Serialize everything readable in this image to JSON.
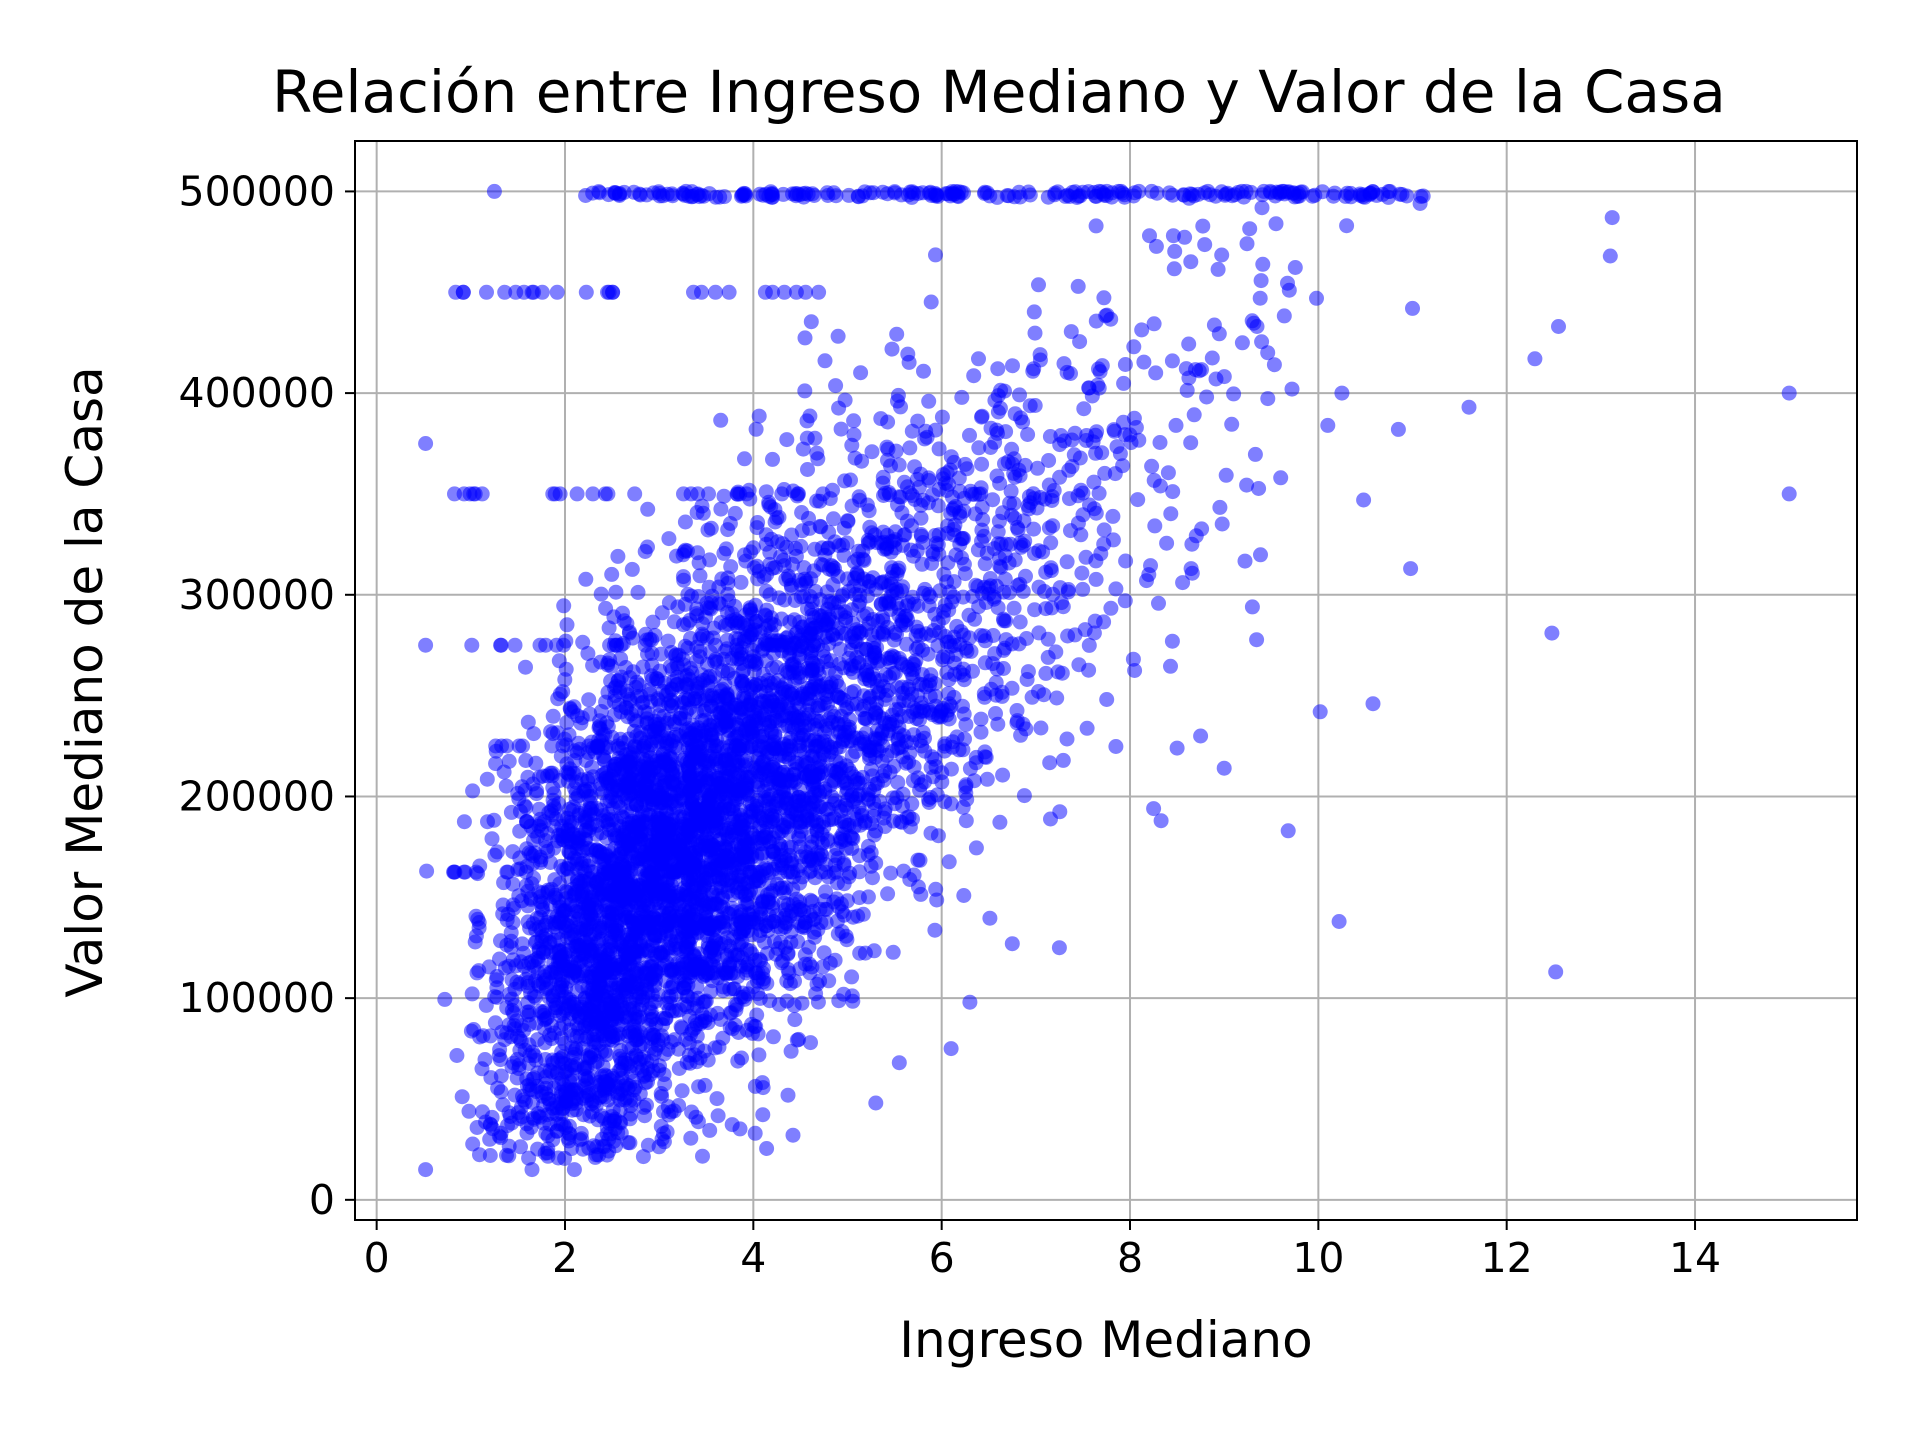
{
  "chart_data": {
    "type": "scatter",
    "title": "Relación entre Ingreso Mediano y Valor de la Casa",
    "xlabel": "Ingreso Mediano",
    "ylabel": "Valor Mediano de la Casa",
    "xlim": [
      -0.23,
      15.72
    ],
    "ylim": [
      -10000,
      525000
    ],
    "xticks": [
      0,
      2,
      4,
      6,
      8,
      10,
      12,
      14
    ],
    "xtick_labels": [
      "0",
      "2",
      "4",
      "6",
      "8",
      "10",
      "12",
      "14"
    ],
    "yticks": [
      0,
      100000,
      200000,
      300000,
      400000,
      500000
    ],
    "ytick_labels": [
      "0",
      "100000",
      "200000",
      "300000",
      "400000",
      "500000"
    ],
    "grid": true,
    "marker_color": "#0000ff",
    "marker_alpha": 0.5,
    "series": [
      {
        "points": [
          [
            15.0,
            400000
          ],
          [
            15.0,
            350000
          ],
          [
            13.12,
            487000
          ],
          [
            13.1,
            468000
          ],
          [
            12.55,
            433000
          ],
          [
            12.3,
            417000
          ],
          [
            12.48,
            281000
          ],
          [
            12.52,
            113000
          ],
          [
            11.6,
            393000
          ],
          [
            10.98,
            313000
          ],
          [
            10.58,
            246000
          ],
          [
            10.02,
            242000
          ],
          [
            10.22,
            138000
          ],
          [
            9.68,
            183000
          ],
          [
            9.3,
            294000
          ],
          [
            8.45,
            277000
          ],
          [
            8.25,
            194000
          ],
          [
            8.33,
            188000
          ],
          [
            11.08,
            494000
          ],
          [
            10.55,
            499000
          ],
          [
            10.3,
            483000
          ],
          [
            9.55,
            484000
          ],
          [
            9.98,
            447000
          ],
          [
            11.0,
            442000
          ],
          [
            10.25,
            400000
          ],
          [
            10.85,
            382000
          ],
          [
            10.48,
            347000
          ],
          [
            10.1,
            384000
          ],
          [
            9.72,
            402000
          ],
          [
            9.6,
            358000
          ],
          [
            0.92,
            450000
          ],
          [
            1.25,
            500000
          ],
          [
            0.52,
            375000
          ],
          [
            0.52,
            275000
          ],
          [
            0.53,
            163000
          ],
          [
            0.52,
            15000
          ],
          [
            1.65,
            15000
          ],
          [
            2.1,
            15000
          ],
          [
            4.02,
            33000
          ],
          [
            5.3,
            48000
          ],
          [
            5.55,
            68000
          ],
          [
            6.1,
            75000
          ],
          [
            6.3,
            98000
          ],
          [
            6.75,
            127000
          ],
          [
            7.25,
            125000
          ],
          [
            9.0,
            214000
          ],
          [
            8.75,
            230000
          ],
          [
            8.5,
            224000
          ],
          [
            7.95,
            297000
          ],
          [
            8.2,
            310000
          ]
        ]
      }
    ]
  }
}
